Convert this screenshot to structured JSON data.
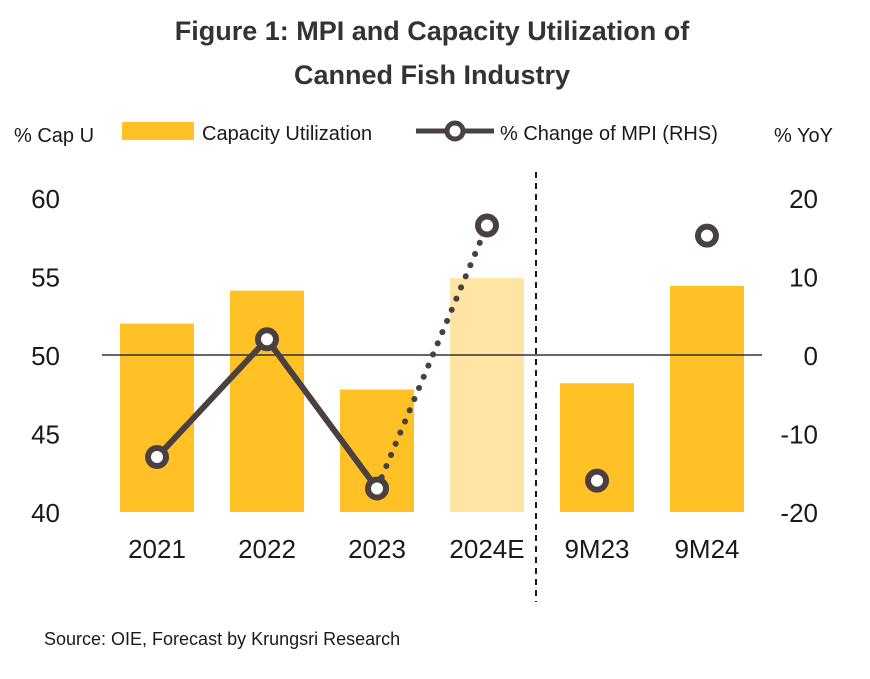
{
  "chart_data": {
    "type": "bar",
    "title": "Figure 1: MPI and Capacity Utilization of",
    "title_line2": "Canned Fish Industry",
    "ylabel_left": "% Cap U",
    "ylabel_right": "% YoY",
    "ylim_left": [
      40,
      60
    ],
    "yticks_left": [
      "60",
      "55",
      "50",
      "45",
      "40"
    ],
    "ylim_right": [
      -20,
      20
    ],
    "yticks_right": [
      "20",
      "10",
      "0",
      "-10",
      "-20"
    ],
    "categories": [
      "2021",
      "2022",
      "2023",
      "2024E",
      "9M23",
      "9M24"
    ],
    "series": [
      {
        "name": "Capacity Utilization",
        "kind": "bar",
        "axis": "left",
        "values": [
          52.0,
          54.1,
          47.8,
          54.9,
          48.2,
          54.4
        ],
        "color": "#FFC125",
        "forecast_color": "#FFE4A3"
      },
      {
        "name": "% Change of MPI (RHS)",
        "kind": "line",
        "axis": "right",
        "values": [
          -13.0,
          2.0,
          -17.0,
          16.5,
          -16.0,
          15.2
        ],
        "color": "#4a4040"
      }
    ],
    "forecast_category": "2024E",
    "divider_after": "2024E",
    "legend_placement": "top",
    "grid": false,
    "source": "Source: OIE, Forecast by Krungsri Research"
  }
}
